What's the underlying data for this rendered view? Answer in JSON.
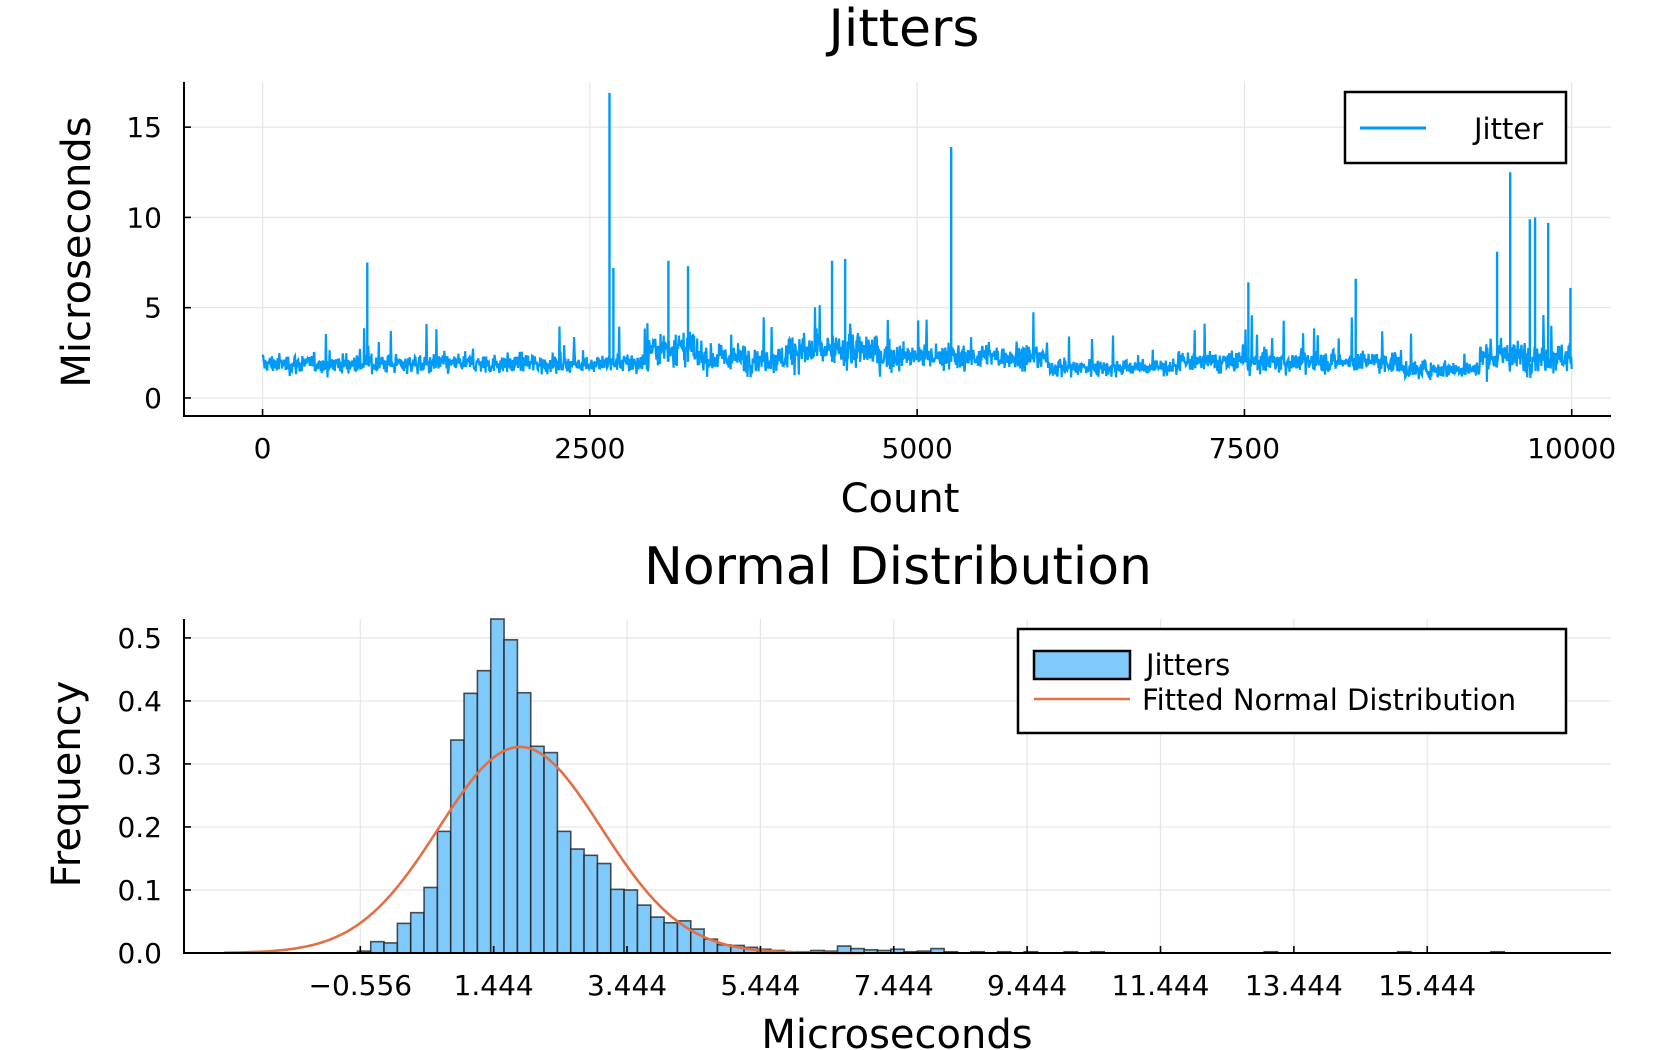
{
  "chart_data": [
    {
      "type": "line",
      "title": "Jitters",
      "xlabel": "Count",
      "ylabel": "Microseconds",
      "xlim": [
        -600,
        10300
      ],
      "ylim": [
        -1,
        17.5
      ],
      "xticks": [
        0,
        2500,
        5000,
        7500,
        10000
      ],
      "xtick_labels": [
        "0",
        "2500",
        "5000",
        "7500",
        "10000"
      ],
      "yticks": [
        0,
        5,
        10,
        15
      ],
      "ytick_labels": [
        "0",
        "5",
        "10",
        "15"
      ],
      "grid": true,
      "legend_position": "top-right",
      "series": [
        {
          "name": "Jitter",
          "color": "#009af9",
          "n_points": 10001,
          "baseline_mean": 2.0,
          "spikes": [
            {
              "x": 800,
              "y": 7.5
            },
            {
              "x": 2650,
              "y": 16.9
            },
            {
              "x": 2680,
              "y": 7.2
            },
            {
              "x": 3100,
              "y": 7.6
            },
            {
              "x": 3250,
              "y": 7.3
            },
            {
              "x": 4350,
              "y": 7.6
            },
            {
              "x": 4450,
              "y": 7.7
            },
            {
              "x": 5260,
              "y": 13.9
            },
            {
              "x": 7530,
              "y": 6.4
            },
            {
              "x": 8350,
              "y": 6.6
            },
            {
              "x": 9430,
              "y": 8.1
            },
            {
              "x": 9530,
              "y": 12.5
            },
            {
              "x": 9680,
              "y": 9.9
            },
            {
              "x": 9720,
              "y": 10.0
            },
            {
              "x": 9820,
              "y": 9.7
            },
            {
              "x": 9990,
              "y": 6.1
            }
          ]
        }
      ]
    },
    {
      "type": "bar",
      "title": "Normal Distribution",
      "xlabel": "Microseconds",
      "ylabel": "Frequency",
      "xlim": [
        -3.2,
        18.2
      ],
      "ylim": [
        0,
        0.53
      ],
      "xticks": [
        -0.556,
        1.444,
        3.444,
        5.444,
        7.444,
        9.444,
        11.444,
        13.444,
        15.444
      ],
      "xtick_labels": [
        "−0.556",
        "1.444",
        "3.444",
        "5.444",
        "7.444",
        "9.444",
        "11.444",
        "13.444",
        "15.444"
      ],
      "yticks": [
        0.0,
        0.1,
        0.2,
        0.3,
        0.4,
        0.5
      ],
      "ytick_labels": [
        "0.0",
        "0.1",
        "0.2",
        "0.3",
        "0.4",
        "0.5"
      ],
      "grid": true,
      "legend_position": "top-right",
      "bin_width": 0.2,
      "series": [
        {
          "name": "Jitters",
          "kind": "histogram",
          "color": "#7fc9fb",
          "bins": [
            [
              -0.6,
              0.003
            ],
            [
              -0.4,
              0.018
            ],
            [
              -0.2,
              0.016
            ],
            [
              0.0,
              0.047
            ],
            [
              0.2,
              0.064
            ],
            [
              0.4,
              0.104
            ],
            [
              0.6,
              0.193
            ],
            [
              0.8,
              0.338
            ],
            [
              1.0,
              0.412
            ],
            [
              1.2,
              0.448
            ],
            [
              1.4,
              0.53
            ],
            [
              1.6,
              0.497
            ],
            [
              1.8,
              0.413
            ],
            [
              2.0,
              0.328
            ],
            [
              2.2,
              0.318
            ],
            [
              2.4,
              0.193
            ],
            [
              2.6,
              0.165
            ],
            [
              2.8,
              0.155
            ],
            [
              3.0,
              0.142
            ],
            [
              3.2,
              0.101
            ],
            [
              3.4,
              0.1
            ],
            [
              3.6,
              0.076
            ],
            [
              3.8,
              0.057
            ],
            [
              4.0,
              0.048
            ],
            [
              4.2,
              0.051
            ],
            [
              4.4,
              0.038
            ],
            [
              4.6,
              0.022
            ],
            [
              4.8,
              0.013
            ],
            [
              5.0,
              0.012
            ],
            [
              5.2,
              0.009
            ],
            [
              5.4,
              0.006
            ],
            [
              5.6,
              0.004
            ],
            [
              5.8,
              0.002
            ],
            [
              6.0,
              0.002
            ],
            [
              6.2,
              0.004
            ],
            [
              6.4,
              0.003
            ],
            [
              6.6,
              0.011
            ],
            [
              6.8,
              0.007
            ],
            [
              7.0,
              0.005
            ],
            [
              7.2,
              0.004
            ],
            [
              7.4,
              0.006
            ],
            [
              7.6,
              0.002
            ],
            [
              7.8,
              0.003
            ],
            [
              8.0,
              0.007
            ],
            [
              8.2,
              0.002
            ],
            [
              8.6,
              0.002
            ],
            [
              9.0,
              0.002
            ],
            [
              9.4,
              0.002
            ],
            [
              10.0,
              0.002
            ],
            [
              10.4,
              0.002
            ],
            [
              13.0,
              0.002
            ],
            [
              15.0,
              0.002
            ],
            [
              16.4,
              0.002
            ]
          ]
        },
        {
          "name": "Fitted Normal Distribution",
          "kind": "line",
          "color": "#e26f46",
          "mean": 1.84,
          "std": 1.22,
          "x_range": [
            -2.6,
            7.0
          ]
        }
      ]
    }
  ]
}
